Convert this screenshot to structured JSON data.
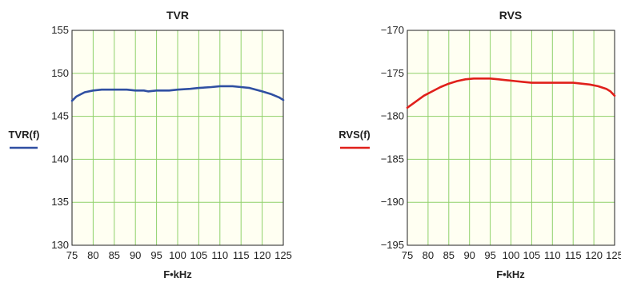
{
  "chart_data": [
    {
      "type": "line",
      "title": "TVR",
      "xlabel": "F•kHz",
      "xlim": [
        75,
        125
      ],
      "ylim": [
        130,
        155
      ],
      "xticks": [
        75,
        80,
        85,
        90,
        95,
        100,
        105,
        110,
        115,
        120,
        125
      ],
      "yticks": [
        130,
        135,
        140,
        145,
        150,
        155
      ],
      "grid": true,
      "legend": "left",
      "series": [
        {
          "name": "TVR(f)",
          "color": "#2f4fa2",
          "x": [
            75,
            76,
            78,
            80,
            82,
            85,
            88,
            90,
            92,
            93,
            95,
            98,
            100,
            103,
            105,
            108,
            110,
            113,
            115,
            117,
            120,
            122,
            124,
            125
          ],
          "y": [
            146.8,
            147.3,
            147.8,
            148.0,
            148.1,
            148.1,
            148.1,
            148.0,
            148.0,
            147.9,
            148.0,
            148.0,
            148.1,
            148.2,
            148.3,
            148.4,
            148.5,
            148.5,
            148.4,
            148.3,
            147.9,
            147.6,
            147.2,
            146.9
          ]
        }
      ]
    },
    {
      "type": "line",
      "title": "RVS",
      "xlabel": "F•kHz",
      "xlim": [
        75,
        125
      ],
      "ylim": [
        -195,
        -170
      ],
      "xticks": [
        75,
        80,
        85,
        90,
        95,
        100,
        105,
        110,
        115,
        120,
        125
      ],
      "yticks": [
        -170,
        -175,
        -180,
        -185,
        -190,
        -195
      ],
      "ytick_labels": [
        "−170",
        "−175",
        "−180",
        "−185",
        "−190",
        "−195"
      ],
      "grid": true,
      "legend": "left",
      "series": [
        {
          "name": "RVS(f)",
          "color": "#e0201b",
          "x": [
            75,
            77,
            79,
            81,
            83,
            85,
            87,
            89,
            91,
            93,
            95,
            97,
            99,
            101,
            103,
            105,
            110,
            115,
            117,
            119,
            121,
            123,
            124,
            125
          ],
          "y": [
            -179.0,
            -178.3,
            -177.6,
            -177.1,
            -176.6,
            -176.2,
            -175.9,
            -175.7,
            -175.6,
            -175.6,
            -175.6,
            -175.7,
            -175.8,
            -175.9,
            -176.0,
            -176.1,
            -176.1,
            -176.1,
            -176.2,
            -176.3,
            -176.5,
            -176.8,
            -177.1,
            -177.6
          ]
        }
      ]
    }
  ]
}
